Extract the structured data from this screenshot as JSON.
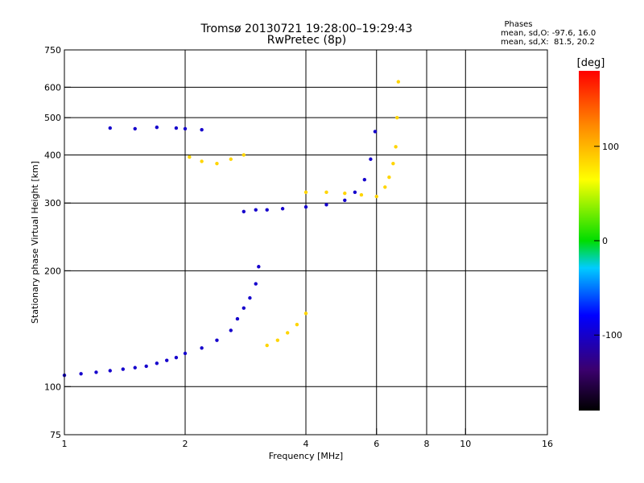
{
  "chart_data": {
    "type": "scatter",
    "title": "Tromsø 20130721 19:28:00–19:29:43",
    "subtitle": "RwPretec (8p)",
    "xlabel": "Frequency [MHz]",
    "ylabel": "Stationary phase Virtual Height [km]",
    "x_scale": "log",
    "y_scale": "log",
    "xlim": [
      1,
      16
    ],
    "ylim": [
      75,
      750
    ],
    "x_ticks": [
      1,
      2,
      4,
      6,
      8,
      10,
      16
    ],
    "y_ticks": [
      75,
      100,
      200,
      300,
      400,
      500,
      600,
      750
    ],
    "x_gridlines": [
      2,
      4,
      6,
      8,
      10
    ],
    "y_gridlines": [
      100,
      200,
      300,
      400,
      500,
      600
    ],
    "grid": true,
    "phase_box": {
      "header": "Phases",
      "line_o": "mean, sd,O: -97.6, 16.0",
      "line_x": "mean, sd,X:  81.5, 20.2"
    },
    "colorbar": {
      "label": "[deg]",
      "range": [
        -180,
        180
      ],
      "ticks": [
        -100,
        0,
        100
      ]
    },
    "series": [
      {
        "mode": "O",
        "color_phase_deg": -100,
        "x": [
          1.0,
          1.1,
          1.2,
          1.3,
          1.4,
          1.5,
          1.6,
          1.7,
          1.8,
          1.9,
          2.0,
          2.2,
          2.4,
          2.6,
          2.7,
          2.8,
          2.9,
          3.0,
          3.05
        ],
        "y": [
          107,
          108,
          109,
          110,
          111,
          112,
          113,
          115,
          117,
          119,
          122,
          126,
          132,
          140,
          150,
          160,
          170,
          185,
          205
        ]
      },
      {
        "mode": "O",
        "color_phase_deg": -100,
        "x": [
          2.8,
          3.0,
          3.2,
          3.5,
          4.0,
          4.5,
          5.0,
          5.3,
          5.6,
          5.8,
          5.95
        ],
        "y": [
          285,
          288,
          288,
          290,
          293,
          297,
          305,
          320,
          345,
          390,
          460
        ]
      },
      {
        "mode": "O",
        "color_phase_deg": -100,
        "x": [
          1.3,
          1.5,
          1.7,
          1.9,
          2.0,
          2.2
        ],
        "y": [
          470,
          468,
          472,
          470,
          468,
          465
        ]
      },
      {
        "mode": "X",
        "color_phase_deg": 85,
        "x": [
          6.3,
          6.45,
          6.6,
          6.7,
          6.75,
          6.8
        ],
        "y": [
          330,
          350,
          380,
          420,
          500,
          620
        ]
      },
      {
        "mode": "X",
        "color_phase_deg": 85,
        "x": [
          3.2,
          3.4,
          3.6,
          3.8,
          4.0
        ],
        "y": [
          128,
          132,
          138,
          145,
          155
        ]
      },
      {
        "mode": "X",
        "color_phase_deg": 85,
        "x": [
          4.0,
          4.5,
          5.0,
          5.5,
          6.0
        ],
        "y": [
          320,
          320,
          318,
          315,
          312
        ]
      },
      {
        "mode": "X",
        "color_phase_deg": 85,
        "x": [
          2.05,
          2.2,
          2.4,
          2.6,
          2.8
        ],
        "y": [
          395,
          385,
          380,
          390,
          400
        ]
      }
    ]
  }
}
